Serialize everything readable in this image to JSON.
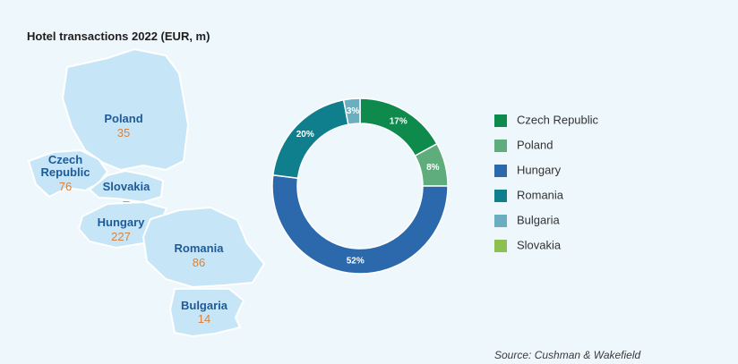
{
  "chart_data": {
    "type": "donut",
    "title": "Hotel transactions 2022 (EUR, m)",
    "categories": [
      "Czech Republic",
      "Poland",
      "Hungary",
      "Romania",
      "Bulgaria",
      "Slovakia"
    ],
    "values": [
      17,
      8,
      52,
      20,
      3,
      0
    ],
    "value_labels": [
      "17%",
      "8%",
      "52%",
      "20%",
      "3%",
      null
    ],
    "colors": [
      "#0e8a4c",
      "#5fac7c",
      "#2b69ac",
      "#0f7f8e",
      "#6aaebf",
      "#8cc152"
    ],
    "legend": "right",
    "source": "Source: Cushman & Wakefield"
  },
  "map": {
    "regions": [
      {
        "name": "Poland",
        "amount": "35"
      },
      {
        "name": "Czech Republic",
        "amount": "76"
      },
      {
        "name": "Slovakia",
        "amount": "–"
      },
      {
        "name": "Hungary",
        "amount": "227"
      },
      {
        "name": "Romania",
        "amount": "86"
      },
      {
        "name": "Bulgaria",
        "amount": "14"
      }
    ]
  }
}
